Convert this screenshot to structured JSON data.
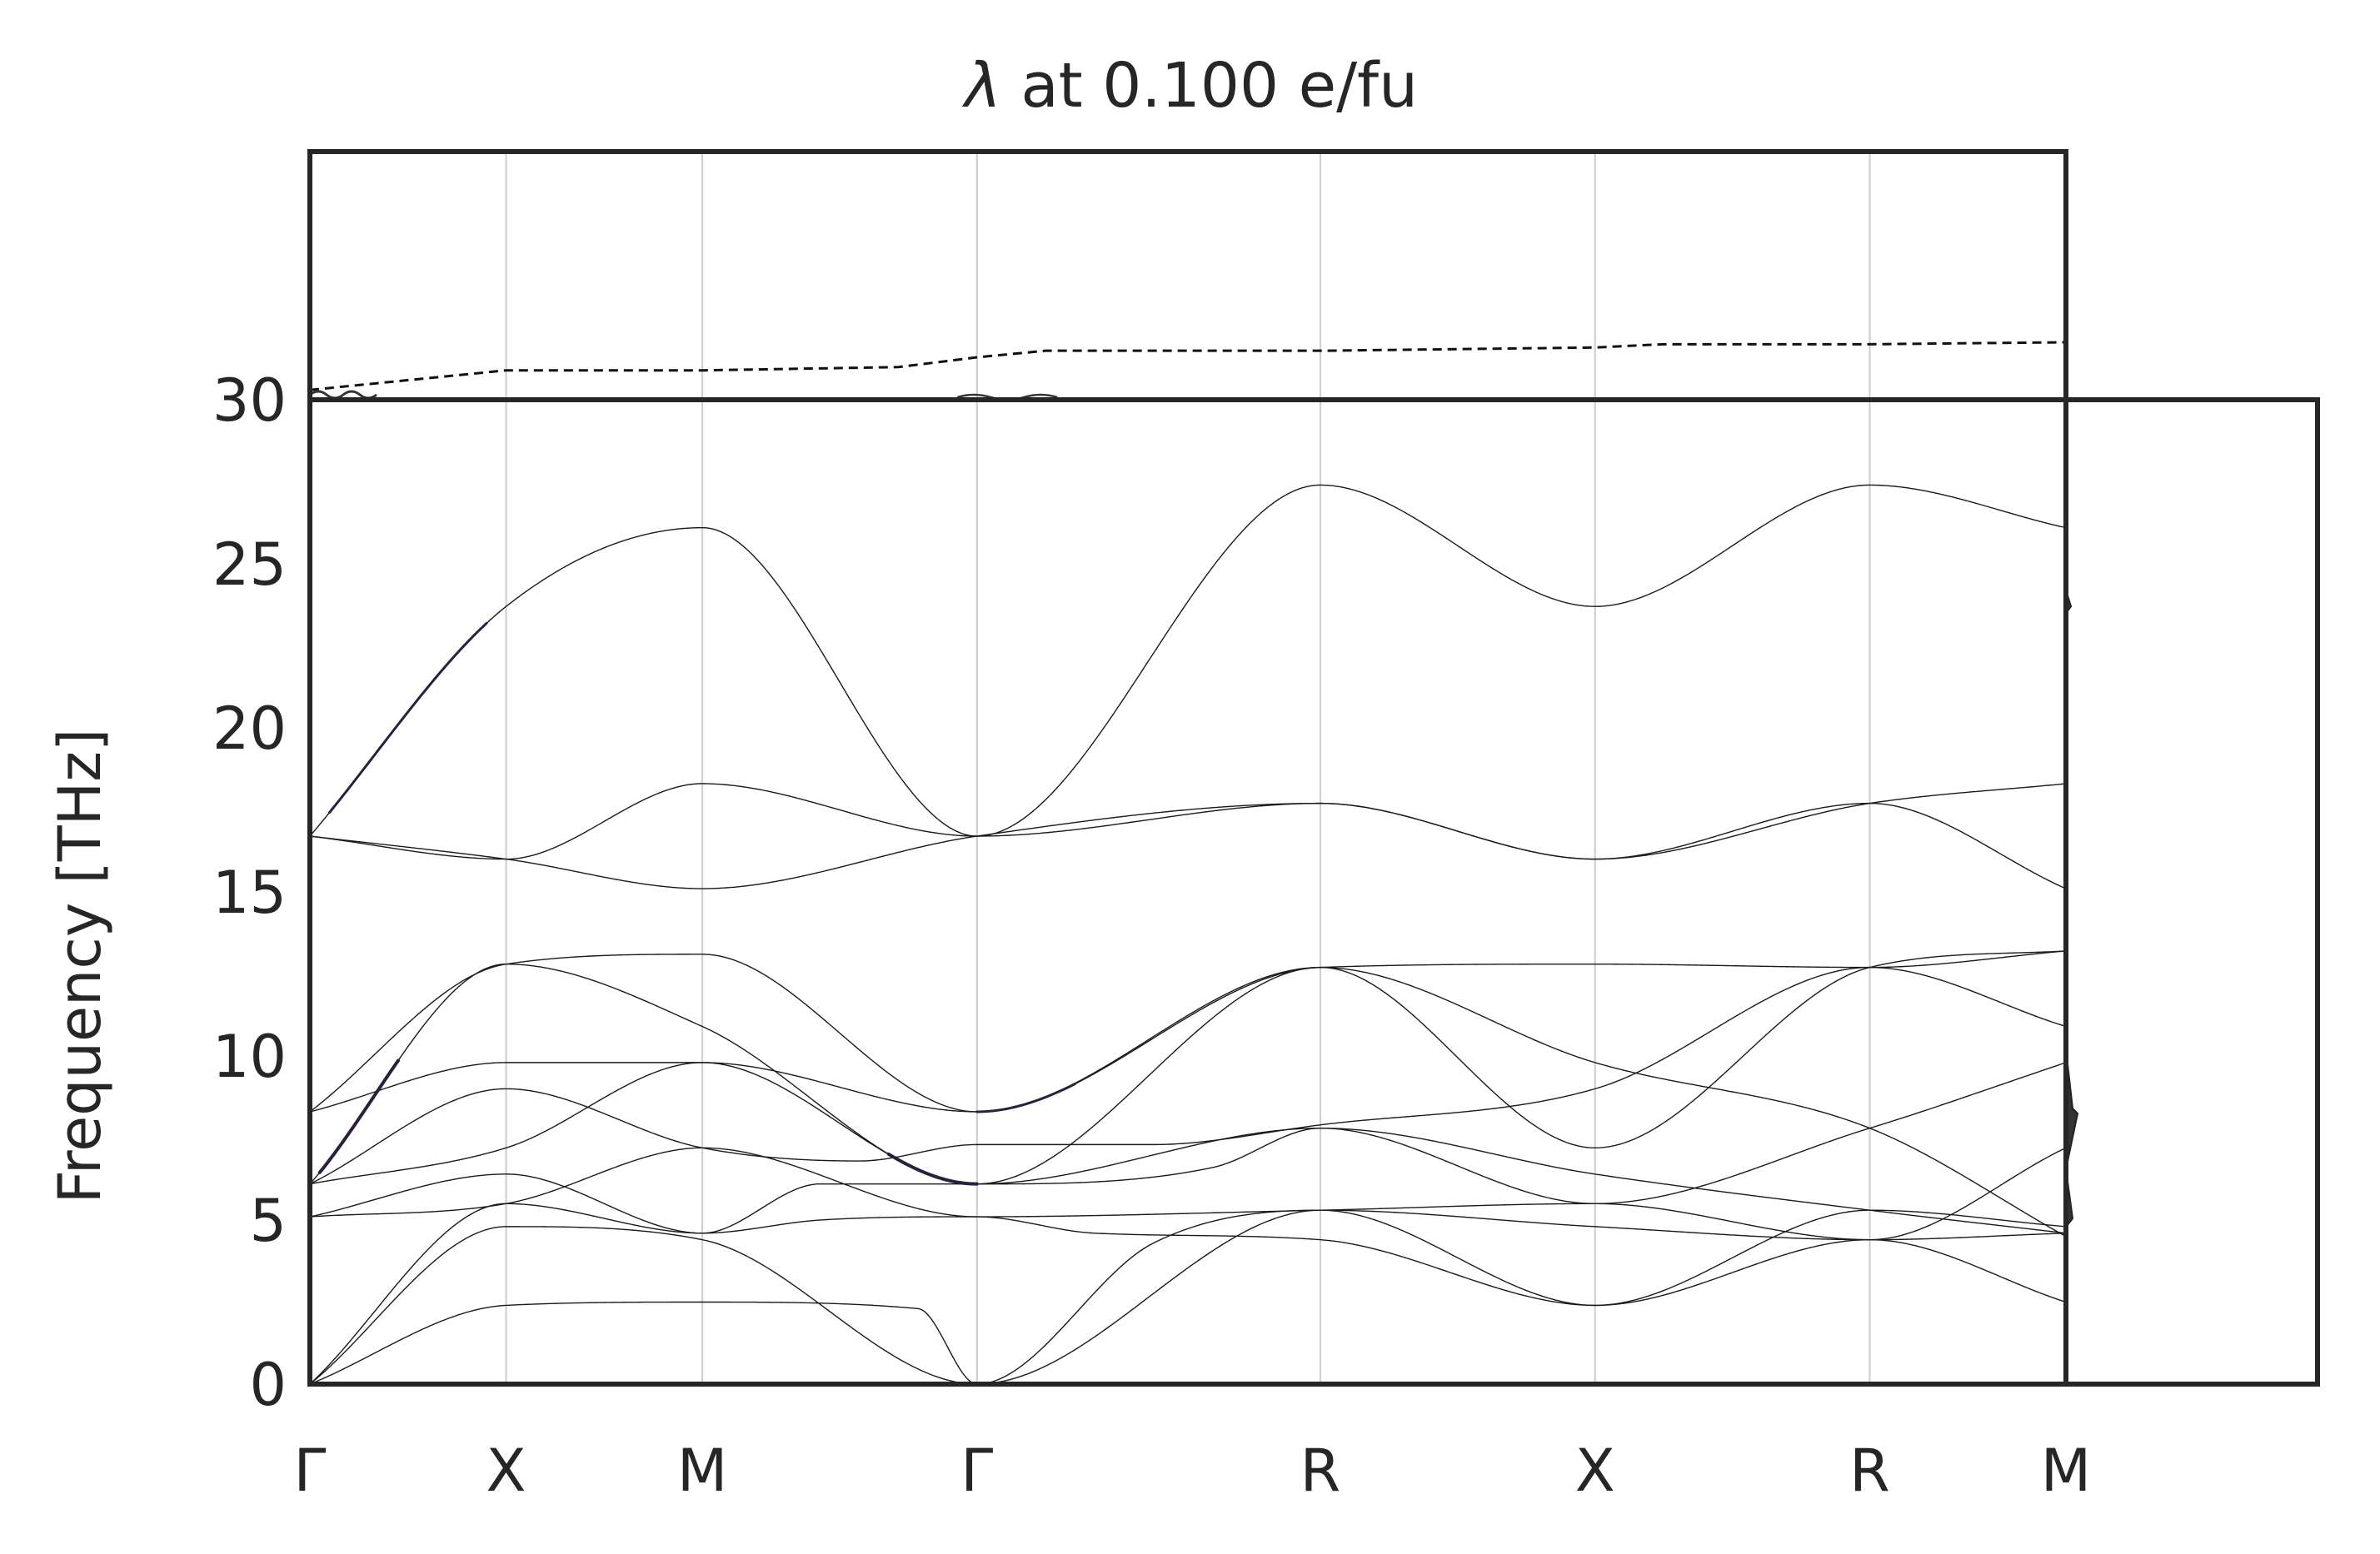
{
  "chart_data": {
    "type": "line",
    "title_symbol": "λ",
    "title_text": " at 0.100 e/fu",
    "ylabel": "Frequency [THz]",
    "ylim": [
      0,
      30
    ],
    "yticks": [
      "0",
      "5",
      "10",
      "15",
      "20",
      "25",
      "30"
    ],
    "grid": "vertical at high-symmetry points",
    "high_symmetry_labels": [
      "Γ",
      "X",
      "M",
      "Γ",
      "R",
      "X",
      "R",
      "M"
    ],
    "high_symmetry_positions": [
      0,
      1,
      2,
      3.4,
      5.15,
      6.55,
      7.95,
      8.95
    ],
    "band_color": "#1a1a1a",
    "frame_color": "#262626",
    "grid_color": "#d0d0d0",
    "bands": [
      {
        "name": "band-1",
        "values": [
          [
            0,
            0
          ],
          [
            1,
            2.4
          ],
          [
            2,
            2.5
          ],
          [
            3.1,
            2.3
          ],
          [
            3.4,
            0
          ],
          [
            5.15,
            5.3
          ],
          [
            6.55,
            2.4
          ],
          [
            7.95,
            4.4
          ],
          [
            8.95,
            2.5
          ]
        ]
      },
      {
        "name": "band-2",
        "values": [
          [
            0,
            0
          ],
          [
            1,
            4.8
          ],
          [
            2,
            4.4
          ],
          [
            3.4,
            0
          ],
          [
            4.3,
            4.3
          ],
          [
            5.15,
            5.3
          ],
          [
            6.55,
            4.8
          ],
          [
            7.95,
            4.4
          ],
          [
            8.95,
            4.6
          ]
        ]
      },
      {
        "name": "band-3",
        "values": [
          [
            0,
            0
          ],
          [
            1,
            5.5
          ],
          [
            2,
            4.6
          ],
          [
            2.6,
            5.0
          ],
          [
            3.4,
            5.1
          ],
          [
            4.0,
            4.6
          ],
          [
            5.15,
            4.4
          ],
          [
            6.55,
            2.4
          ],
          [
            7.95,
            5.3
          ],
          [
            8.95,
            4.8
          ]
        ]
      },
      {
        "name": "band-4",
        "values": [
          [
            0,
            5.1
          ],
          [
            1,
            5.5
          ],
          [
            2,
            7.2
          ],
          [
            3.4,
            5.1
          ],
          [
            5.15,
            5.3
          ],
          [
            6.55,
            5.5
          ],
          [
            7.95,
            4.4
          ],
          [
            8.95,
            7.2
          ]
        ]
      },
      {
        "name": "band-5",
        "values": [
          [
            0,
            5.1
          ],
          [
            1,
            6.4
          ],
          [
            2,
            4.6
          ],
          [
            2.6,
            6.1
          ],
          [
            3.4,
            6.1
          ],
          [
            4.6,
            6.6
          ],
          [
            5.15,
            7.8
          ],
          [
            6.55,
            6.4
          ],
          [
            7.95,
            5.3
          ],
          [
            8.95,
            4.6
          ]
        ]
      },
      {
        "name": "band-6",
        "values": [
          [
            0,
            6.1
          ],
          [
            1,
            7.2
          ],
          [
            2,
            9.8
          ],
          [
            3.4,
            6.1
          ],
          [
            5.15,
            7.8
          ],
          [
            6.55,
            5.5
          ],
          [
            7.95,
            7.8
          ],
          [
            8.95,
            9.8
          ]
        ]
      },
      {
        "name": "band-7",
        "values": [
          [
            0,
            6.1
          ],
          [
            1,
            9.0
          ],
          [
            2,
            7.2
          ],
          [
            2.8,
            6.8
          ],
          [
            3.4,
            7.3
          ],
          [
            4.3,
            7.3
          ],
          [
            5.15,
            7.9
          ],
          [
            6.55,
            9.0
          ],
          [
            7.95,
            12.7
          ],
          [
            8.95,
            10.9
          ]
        ]
      },
      {
        "name": "band-8",
        "values": [
          [
            0,
            8.3
          ],
          [
            1,
            9.8
          ],
          [
            2,
            9.8
          ],
          [
            3.4,
            8.3
          ],
          [
            5.15,
            12.7
          ],
          [
            6.55,
            9.8
          ],
          [
            7.95,
            7.8
          ],
          [
            8.95,
            4.5
          ]
        ]
      },
      {
        "name": "band-9",
        "values": [
          [
            0,
            6.1
          ],
          [
            1,
            12.8
          ],
          [
            2,
            10.9
          ],
          [
            3.4,
            6.1
          ],
          [
            5.15,
            12.7
          ],
          [
            6.55,
            7.2
          ],
          [
            7.95,
            12.7
          ],
          [
            8.95,
            13.2
          ]
        ]
      },
      {
        "name": "band-10",
        "values": [
          [
            0,
            8.3
          ],
          [
            1,
            12.8
          ],
          [
            2,
            13.1
          ],
          [
            3.4,
            8.3
          ],
          [
            5.15,
            12.7
          ],
          [
            6.55,
            12.8
          ],
          [
            7.95,
            12.7
          ],
          [
            8.95,
            13.2
          ]
        ]
      },
      {
        "name": "band-11",
        "values": [
          [
            0,
            16.7
          ],
          [
            1,
            16.0
          ],
          [
            2,
            15.1
          ],
          [
            3.4,
            16.7
          ],
          [
            5.15,
            17.7
          ],
          [
            6.55,
            16.0
          ],
          [
            7.95,
            17.7
          ],
          [
            8.95,
            15.1
          ]
        ]
      },
      {
        "name": "band-12",
        "values": [
          [
            0,
            16.7
          ],
          [
            1,
            16.0
          ],
          [
            2,
            18.3
          ],
          [
            3.4,
            16.7
          ],
          [
            5.15,
            17.7
          ],
          [
            6.55,
            16.0
          ],
          [
            7.95,
            17.7
          ],
          [
            8.95,
            18.3
          ]
        ]
      },
      {
        "name": "band-13",
        "values": [
          [
            0,
            16.7
          ],
          [
            1,
            23.7
          ],
          [
            2,
            26.1
          ],
          [
            3.4,
            16.7
          ],
          [
            5.15,
            27.4
          ],
          [
            6.55,
            23.7
          ],
          [
            7.95,
            27.4
          ],
          [
            8.95,
            26.1
          ]
        ]
      }
    ],
    "lambda_line": {
      "style": "dashed",
      "values": [
        [
          0,
          30.15
        ],
        [
          1,
          30.45
        ],
        [
          2,
          30.45
        ],
        [
          3.0,
          30.5
        ],
        [
          3.4,
          30.65
        ],
        [
          3.75,
          30.75
        ],
        [
          5.15,
          30.75
        ],
        [
          6.55,
          30.8
        ],
        [
          6.9,
          30.85
        ],
        [
          7.95,
          30.85
        ],
        [
          8.95,
          30.88
        ]
      ]
    },
    "emphasis_segments": [
      {
        "band": "band-13",
        "range": [
          0.1,
          0.9
        ],
        "weight": 3
      },
      {
        "band": "band-9",
        "range": [
          0.05,
          0.45
        ],
        "weight": 4
      },
      {
        "band": "band-9",
        "range": [
          2.95,
          3.4
        ],
        "weight": 4
      },
      {
        "band": "band-10",
        "range": [
          3.4,
          3.9
        ],
        "weight": 3
      }
    ]
  }
}
